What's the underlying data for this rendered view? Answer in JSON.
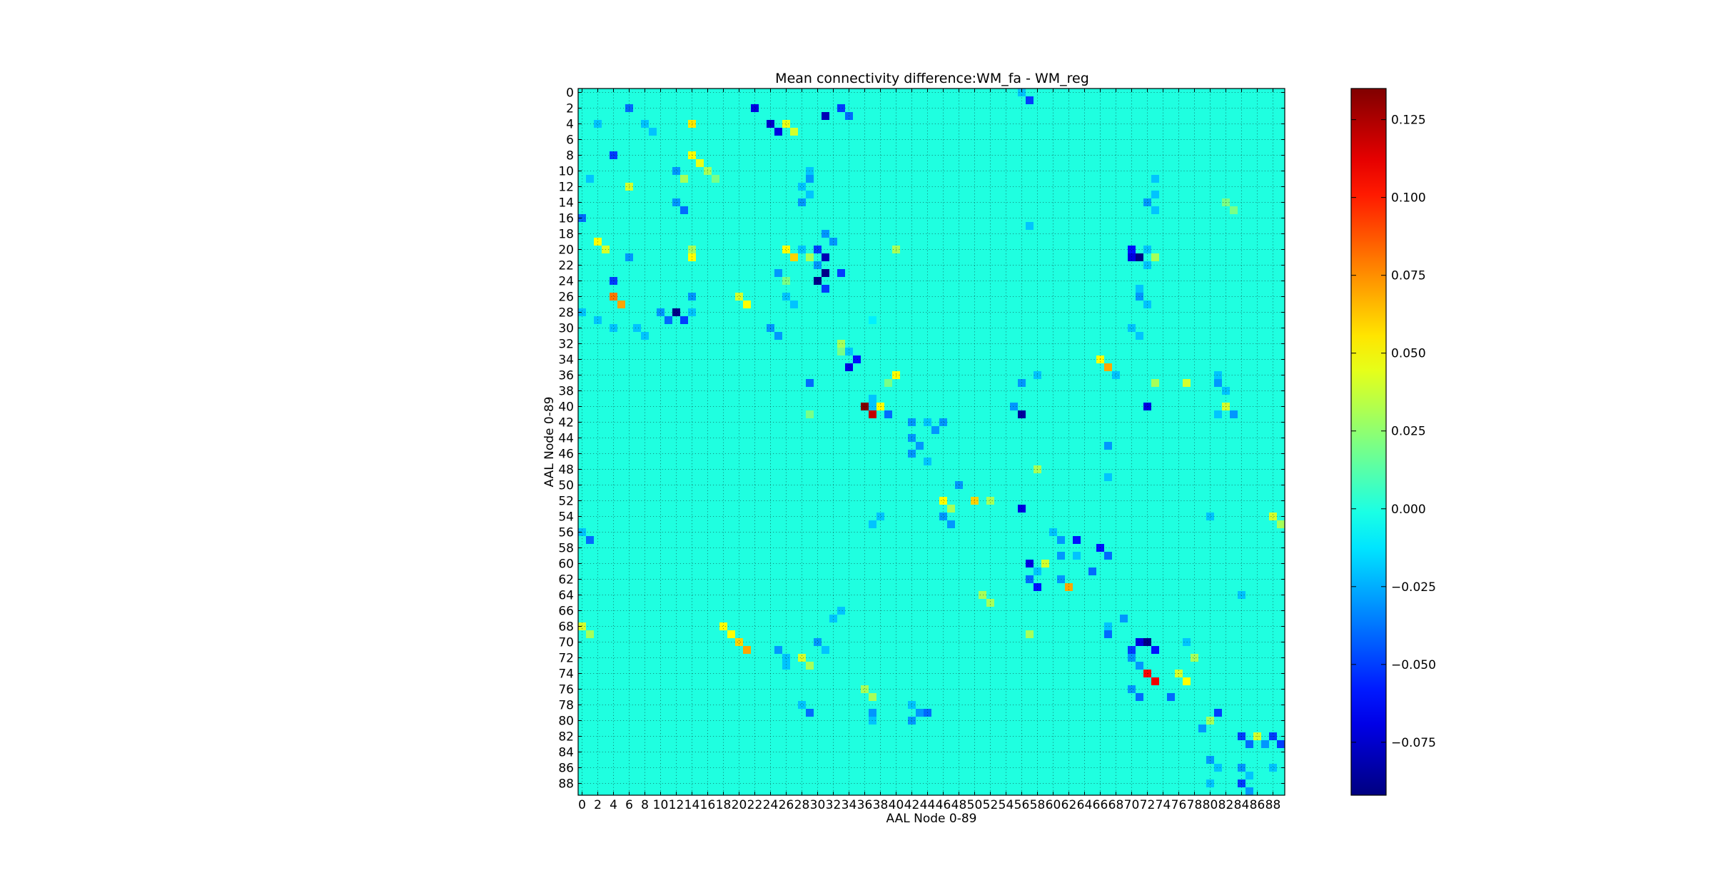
{
  "chart_data": {
    "type": "heatmap",
    "title": "Mean connectivity difference:WM_fa - WM_reg",
    "xlabel": "AAL Node 0-89",
    "ylabel": "AAL Node 0-89",
    "n": 90,
    "xticks": [
      0,
      2,
      4,
      6,
      8,
      10,
      12,
      14,
      16,
      18,
      20,
      22,
      24,
      26,
      28,
      30,
      32,
      34,
      36,
      38,
      40,
      42,
      44,
      46,
      48,
      50,
      52,
      54,
      56,
      58,
      60,
      62,
      64,
      66,
      68,
      70,
      72,
      74,
      76,
      78,
      80,
      82,
      84,
      86,
      88
    ],
    "yticks": [
      0,
      2,
      4,
      6,
      8,
      10,
      12,
      14,
      16,
      18,
      20,
      22,
      24,
      26,
      28,
      30,
      32,
      34,
      36,
      38,
      40,
      42,
      44,
      46,
      48,
      50,
      52,
      54,
      56,
      58,
      60,
      62,
      64,
      66,
      68,
      70,
      72,
      74,
      76,
      78,
      80,
      82,
      84,
      86,
      88
    ],
    "grid": true,
    "colormap": "jet",
    "vmin": -0.092,
    "vmax": 0.135,
    "background_value": 0.0,
    "colorbar_ticks": [
      0.125,
      0.1,
      0.075,
      0.05,
      0.025,
      0.0,
      -0.025,
      -0.05,
      -0.075
    ],
    "colorbar_tick_labels": [
      "0.125",
      "0.100",
      "0.075",
      "0.050",
      "0.025",
      "0.000",
      "−0.025",
      "−0.050",
      "−0.075"
    ],
    "cells": [
      [
        2,
        22,
        -0.07
      ],
      [
        3,
        31,
        -0.08
      ],
      [
        2,
        33,
        -0.05
      ],
      [
        3,
        34,
        -0.04
      ],
      [
        2,
        6,
        -0.04
      ],
      [
        4,
        2,
        -0.02
      ],
      [
        4,
        8,
        -0.02
      ],
      [
        1,
        57,
        -0.05
      ],
      [
        0,
        56,
        -0.02
      ],
      [
        4,
        24,
        -0.075
      ],
      [
        5,
        25,
        -0.07
      ],
      [
        4,
        26,
        0.045
      ],
      [
        5,
        27,
        0.04
      ],
      [
        4,
        14,
        0.055
      ],
      [
        5,
        9,
        -0.02
      ],
      [
        8,
        4,
        -0.05
      ],
      [
        8,
        14,
        0.05
      ],
      [
        9,
        15,
        0.045
      ],
      [
        10,
        16,
        0.03
      ],
      [
        11,
        17,
        0.02
      ],
      [
        11,
        1,
        -0.02
      ],
      [
        10,
        12,
        -0.03
      ],
      [
        11,
        13,
        0.03
      ],
      [
        10,
        29,
        -0.02
      ],
      [
        11,
        29,
        -0.03
      ],
      [
        12,
        28,
        -0.02
      ],
      [
        13,
        29,
        -0.02
      ],
      [
        14,
        28,
        -0.03
      ],
      [
        14,
        12,
        -0.03
      ],
      [
        15,
        13,
        -0.04
      ],
      [
        12,
        6,
        0.04
      ],
      [
        16,
        0,
        -0.04
      ],
      [
        17,
        57,
        -0.02
      ],
      [
        14,
        72,
        -0.03
      ],
      [
        15,
        73,
        -0.02
      ],
      [
        14,
        82,
        0.02
      ],
      [
        15,
        83,
        0.02
      ],
      [
        13,
        73,
        -0.02
      ],
      [
        11,
        73,
        -0.02
      ],
      [
        19,
        2,
        0.05
      ],
      [
        20,
        3,
        0.04
      ],
      [
        20,
        14,
        0.03
      ],
      [
        21,
        14,
        0.05
      ],
      [
        21,
        6,
        -0.03
      ],
      [
        20,
        26,
        0.05
      ],
      [
        21,
        27,
        0.06
      ],
      [
        20,
        28,
        -0.02
      ],
      [
        21,
        29,
        0.03
      ],
      [
        20,
        30,
        -0.05
      ],
      [
        21,
        31,
        -0.08
      ],
      [
        22,
        30,
        -0.03
      ],
      [
        23,
        31,
        -0.09
      ],
      [
        23,
        33,
        -0.05
      ],
      [
        24,
        30,
        -0.09
      ],
      [
        25,
        31,
        -0.05
      ],
      [
        19,
        32,
        -0.03
      ],
      [
        18,
        31,
        -0.03
      ],
      [
        20,
        40,
        0.03
      ],
      [
        20,
        70,
        -0.06
      ],
      [
        21,
        70,
        -0.07
      ],
      [
        21,
        71,
        -0.09
      ],
      [
        20,
        72,
        -0.02
      ],
      [
        21,
        73,
        0.03
      ],
      [
        22,
        72,
        -0.02
      ],
      [
        24,
        4,
        -0.05
      ],
      [
        26,
        4,
        0.08
      ],
      [
        27,
        5,
        0.07
      ],
      [
        26,
        14,
        -0.03
      ],
      [
        26,
        20,
        0.04
      ],
      [
        27,
        21,
        0.05
      ],
      [
        26,
        26,
        -0.02
      ],
      [
        27,
        27,
        -0.02
      ],
      [
        23,
        25,
        -0.03
      ],
      [
        24,
        26,
        0.02
      ],
      [
        26,
        71,
        -0.03
      ],
      [
        27,
        72,
        -0.02
      ],
      [
        25,
        71,
        -0.02
      ],
      [
        28,
        0,
        -0.02
      ],
      [
        28,
        10,
        -0.03
      ],
      [
        28,
        12,
        -0.09
      ],
      [
        29,
        11,
        -0.04
      ],
      [
        29,
        13,
        -0.05
      ],
      [
        28,
        14,
        -0.02
      ],
      [
        29,
        2,
        -0.02
      ],
      [
        30,
        4,
        -0.02
      ],
      [
        30,
        7,
        -0.02
      ],
      [
        31,
        8,
        -0.02
      ],
      [
        30,
        24,
        -0.03
      ],
      [
        31,
        25,
        -0.03
      ],
      [
        30,
        70,
        -0.02
      ],
      [
        31,
        71,
        -0.02
      ],
      [
        29,
        37,
        -0.01
      ],
      [
        33,
        34,
        -0.02
      ],
      [
        34,
        35,
        -0.06
      ],
      [
        35,
        34,
        -0.07
      ],
      [
        34,
        66,
        0.05
      ],
      [
        35,
        67,
        0.07
      ],
      [
        32,
        33,
        0.03
      ],
      [
        33,
        33,
        0.02
      ],
      [
        36,
        40,
        0.05
      ],
      [
        37,
        39,
        0.02
      ],
      [
        37,
        29,
        -0.04
      ],
      [
        36,
        58,
        -0.02
      ],
      [
        37,
        56,
        -0.03
      ],
      [
        36,
        68,
        -0.02
      ],
      [
        37,
        73,
        0.03
      ],
      [
        37,
        77,
        0.04
      ],
      [
        36,
        81,
        -0.02
      ],
      [
        37,
        81,
        -0.03
      ],
      [
        38,
        82,
        -0.02
      ],
      [
        40,
        36,
        0.135
      ],
      [
        41,
        37,
        0.12
      ],
      [
        40,
        38,
        0.05
      ],
      [
        41,
        39,
        -0.04
      ],
      [
        40,
        55,
        -0.03
      ],
      [
        41,
        56,
        -0.085
      ],
      [
        40,
        72,
        -0.07
      ],
      [
        41,
        81,
        -0.02
      ],
      [
        40,
        82,
        0.04
      ],
      [
        41,
        83,
        -0.03
      ],
      [
        39,
        37,
        -0.02
      ],
      [
        40,
        37,
        -0.02
      ],
      [
        41,
        29,
        0.02
      ],
      [
        42,
        42,
        -0.03
      ],
      [
        42,
        44,
        -0.02
      ],
      [
        42,
        46,
        -0.03
      ],
      [
        43,
        45,
        -0.03
      ],
      [
        44,
        42,
        -0.03
      ],
      [
        45,
        43,
        -0.03
      ],
      [
        46,
        42,
        -0.03
      ],
      [
        47,
        44,
        -0.02
      ],
      [
        45,
        67,
        -0.03
      ],
      [
        49,
        67,
        -0.02
      ],
      [
        48,
        58,
        0.03
      ],
      [
        50,
        48,
        -0.03
      ],
      [
        52,
        46,
        0.05
      ],
      [
        53,
        47,
        0.03
      ],
      [
        52,
        50,
        0.06
      ],
      [
        52,
        52,
        0.03
      ],
      [
        53,
        56,
        -0.07
      ],
      [
        54,
        46,
        -0.03
      ],
      [
        55,
        47,
        -0.03
      ],
      [
        54,
        38,
        -0.02
      ],
      [
        55,
        37,
        -0.02
      ],
      [
        54,
        80,
        -0.02
      ],
      [
        54,
        88,
        0.04
      ],
      [
        55,
        89,
        0.03
      ],
      [
        57,
        1,
        -0.04
      ],
      [
        56,
        0,
        -0.02
      ],
      [
        57,
        61,
        -0.03
      ],
      [
        56,
        60,
        -0.02
      ],
      [
        57,
        63,
        -0.06
      ],
      [
        58,
        66,
        -0.06
      ],
      [
        59,
        67,
        -0.04
      ],
      [
        60,
        57,
        -0.07
      ],
      [
        60,
        59,
        0.04
      ],
      [
        61,
        58,
        -0.02
      ],
      [
        62,
        57,
        -0.04
      ],
      [
        63,
        58,
        -0.06
      ],
      [
        62,
        61,
        -0.03
      ],
      [
        63,
        62,
        0.07
      ],
      [
        61,
        65,
        -0.04
      ],
      [
        59,
        63,
        -0.02
      ],
      [
        59,
        61,
        -0.03
      ],
      [
        64,
        51,
        0.03
      ],
      [
        65,
        52,
        0.03
      ],
      [
        64,
        84,
        -0.02
      ],
      [
        66,
        33,
        -0.02
      ],
      [
        67,
        32,
        -0.02
      ],
      [
        68,
        0,
        0.04
      ],
      [
        69,
        1,
        0.03
      ],
      [
        68,
        18,
        0.05
      ],
      [
        69,
        19,
        0.05
      ],
      [
        70,
        20,
        0.06
      ],
      [
        71,
        21,
        0.07
      ],
      [
        69,
        57,
        0.03
      ],
      [
        68,
        67,
        -0.02
      ],
      [
        69,
        67,
        -0.04
      ],
      [
        67,
        69,
        -0.03
      ],
      [
        70,
        30,
        -0.03
      ],
      [
        71,
        31,
        -0.02
      ],
      [
        72,
        28,
        0.04
      ],
      [
        73,
        29,
        0.03
      ],
      [
        71,
        25,
        -0.03
      ],
      [
        72,
        26,
        -0.02
      ],
      [
        73,
        26,
        -0.02
      ],
      [
        70,
        71,
        -0.07
      ],
      [
        70,
        72,
        -0.09
      ],
      [
        71,
        70,
        -0.05
      ],
      [
        72,
        70,
        -0.03
      ],
      [
        71,
        73,
        -0.06
      ],
      [
        73,
        71,
        -0.03
      ],
      [
        74,
        72,
        0.105
      ],
      [
        75,
        73,
        0.11
      ],
      [
        74,
        76,
        0.04
      ],
      [
        75,
        77,
        0.05
      ],
      [
        70,
        77,
        -0.02
      ],
      [
        72,
        78,
        0.03
      ],
      [
        76,
        70,
        -0.03
      ],
      [
        77,
        71,
        -0.04
      ],
      [
        77,
        75,
        -0.04
      ],
      [
        76,
        36,
        0.03
      ],
      [
        77,
        37,
        0.03
      ],
      [
        79,
        29,
        -0.04
      ],
      [
        78,
        28,
        -0.02
      ],
      [
        79,
        37,
        -0.03
      ],
      [
        80,
        37,
        -0.02
      ],
      [
        78,
        42,
        -0.02
      ],
      [
        79,
        43,
        -0.03
      ],
      [
        80,
        42,
        -0.03
      ],
      [
        79,
        44,
        -0.04
      ],
      [
        80,
        80,
        0.03
      ],
      [
        79,
        81,
        -0.05
      ],
      [
        81,
        79,
        -0.03
      ],
      [
        82,
        84,
        -0.05
      ],
      [
        83,
        85,
        -0.04
      ],
      [
        82,
        86,
        0.04
      ],
      [
        83,
        87,
        -0.03
      ],
      [
        82,
        88,
        -0.05
      ],
      [
        83,
        89,
        -0.05
      ],
      [
        85,
        80,
        -0.03
      ],
      [
        86,
        81,
        -0.02
      ],
      [
        86,
        84,
        -0.03
      ],
      [
        87,
        85,
        -0.02
      ],
      [
        88,
        84,
        -0.05
      ],
      [
        89,
        85,
        -0.03
      ],
      [
        88,
        80,
        -0.02
      ],
      [
        86,
        88,
        -0.02
      ]
    ]
  }
}
